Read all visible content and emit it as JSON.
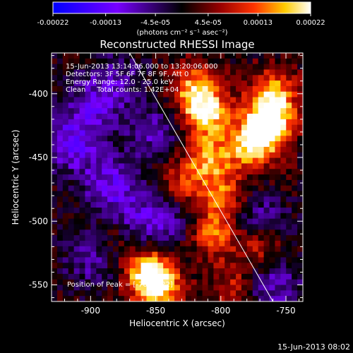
{
  "colorbar": {
    "tick_labels": [
      "-0.00022",
      "-0.00013",
      "-4.5e-05",
      "4.5e-05",
      "0.00013",
      "0.00022"
    ],
    "tick_values": [
      -0.00022,
      -0.00013,
      -4.5e-05,
      4.5e-05,
      0.00013,
      0.00022
    ],
    "range": [
      -0.00022,
      0.00022
    ],
    "units_label": "(photons cm⁻² s⁻¹ asec⁻²)"
  },
  "chart_data": {
    "type": "heatmap",
    "title": "Reconstructed RHESSI Image",
    "xlabel": "Heliocentric X (arcsec)",
    "ylabel": "Heliocentric Y (arcsec)",
    "xlim": [
      -930,
      -737
    ],
    "ylim": [
      -563,
      -368
    ],
    "x_ticks": [
      -900,
      -850,
      -800,
      -750
    ],
    "y_ticks": [
      -400,
      -450,
      -500,
      -550
    ],
    "x_tick_labels": [
      "-900",
      "-850",
      "-800",
      "-750"
    ],
    "y_tick_labels": [
      "-400",
      "-450",
      "-500",
      "-550"
    ],
    "annotation_lines": [
      "15-Jun-2013 13:14:06.000 to 13:20:06.000",
      "Detectors: 3F 5F 6F 7F 8F 9F, Att 0",
      "Energy Range: 12.0 - 25.0 keV",
      "Clean     Total counts: 1.42E+04"
    ],
    "peak_label": "Position of Peak = [-763,-422]",
    "peak_position": [
      -763,
      -422
    ],
    "limb_line": [
      [
        -870,
        -368
      ],
      [
        -760,
        -563
      ]
    ],
    "bright_sources": [
      {
        "x": -763,
        "y": -422,
        "intensity": 1.0
      },
      {
        "x": -775,
        "y": -440,
        "intensity": 0.85
      },
      {
        "x": -760,
        "y": -400,
        "intensity": 0.7
      },
      {
        "x": -812,
        "y": -415,
        "intensity": 0.9
      },
      {
        "x": -808,
        "y": -450,
        "intensity": 0.7
      },
      {
        "x": -820,
        "y": -395,
        "intensity": 0.65
      },
      {
        "x": -800,
        "y": -480,
        "intensity": 0.55
      },
      {
        "x": -805,
        "y": -510,
        "intensity": 0.6
      },
      {
        "x": -855,
        "y": -540,
        "intensity": 0.85
      },
      {
        "x": -848,
        "y": -553,
        "intensity": 0.7
      },
      {
        "x": -880,
        "y": -510,
        "intensity": 0.35
      },
      {
        "x": -830,
        "y": -470,
        "intensity": 0.4
      },
      {
        "x": -770,
        "y": -520,
        "intensity": 0.45
      },
      {
        "x": -790,
        "y": -550,
        "intensity": 0.35
      }
    ],
    "dark_regions": [
      {
        "x": -915,
        "y": -440,
        "intensity": -0.55
      },
      {
        "x": -900,
        "y": -410,
        "intensity": -0.4
      },
      {
        "x": -885,
        "y": -470,
        "intensity": -0.5
      },
      {
        "x": -870,
        "y": -500,
        "intensity": -0.45
      },
      {
        "x": -850,
        "y": -430,
        "intensity": -0.4
      },
      {
        "x": -900,
        "y": -530,
        "intensity": -0.35
      },
      {
        "x": -760,
        "y": -550,
        "intensity": -0.45
      },
      {
        "x": -770,
        "y": -500,
        "intensity": -0.4
      },
      {
        "x": -840,
        "y": -500,
        "intensity": -0.35
      },
      {
        "x": -880,
        "y": -390,
        "intensity": -0.35
      }
    ],
    "colormap": [
      "#0000ff",
      "#7700ff",
      "#000000",
      "#990000",
      "#ff3300",
      "#ffcc00",
      "#ffffff"
    ]
  },
  "footer": {
    "timestamp": "15-Jun-2013 08:02"
  }
}
